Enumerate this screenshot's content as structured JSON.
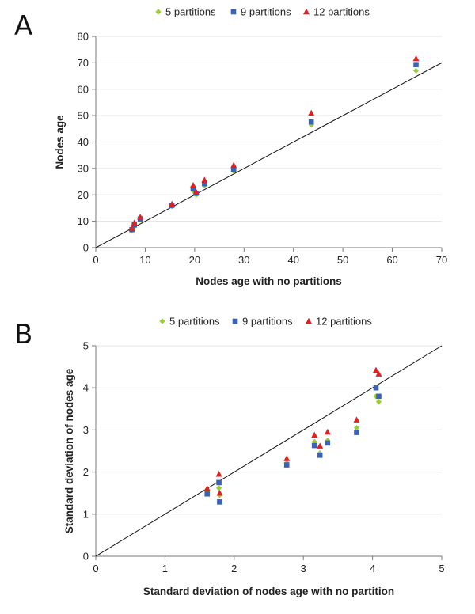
{
  "chart_data": [
    {
      "type": "scatter",
      "panel_label": "A",
      "title": "",
      "xlabel": "Nodes age with no partitions",
      "ylabel": "Nodes age",
      "xlim": [
        0,
        70
      ],
      "ylim": [
        0,
        80
      ],
      "xticks": [
        0,
        10,
        20,
        30,
        40,
        50,
        60,
        70
      ],
      "yticks": [
        0,
        10,
        20,
        30,
        40,
        50,
        60,
        70,
        80
      ],
      "xtick_labels": [
        "0",
        "10",
        "20",
        "30",
        "40",
        "50",
        "60",
        "70"
      ],
      "ytick_labels": [
        "0",
        "10",
        "20",
        "30",
        "40",
        "50",
        "60",
        "70",
        "80"
      ],
      "grid": "horizontal",
      "reference_line": "y = x",
      "legend_position": "top",
      "series": [
        {
          "name": "5 partitions",
          "color": "#9acd32",
          "marker": "diamond",
          "x": [
            7.3,
            7.8,
            9.0,
            15.4,
            19.7,
            20.3,
            22.0,
            27.9,
            43.6,
            64.8
          ],
          "y": [
            6.5,
            8.0,
            10.5,
            15.6,
            21.5,
            20.0,
            23.6,
            29.0,
            46.5,
            67.0
          ]
        },
        {
          "name": "9 partitions",
          "color": "#3a62b6",
          "marker": "square",
          "x": [
            7.3,
            7.8,
            9.0,
            15.4,
            19.7,
            20.3,
            22.0,
            27.9,
            43.6,
            64.8
          ],
          "y": [
            6.8,
            8.6,
            10.9,
            16.0,
            22.4,
            20.6,
            24.2,
            29.6,
            47.6,
            69.3
          ]
        },
        {
          "name": "12 partitions",
          "color": "#e02020",
          "marker": "triangle",
          "x": [
            7.3,
            7.8,
            9.0,
            15.4,
            19.7,
            20.3,
            22.0,
            27.9,
            43.6,
            64.8
          ],
          "y": [
            7.2,
            9.4,
            11.6,
            16.5,
            23.6,
            21.1,
            25.6,
            31.2,
            51.0,
            71.6
          ]
        }
      ]
    },
    {
      "type": "scatter",
      "panel_label": "B",
      "title": "",
      "xlabel": "Standard deviation of nodes age with no partition",
      "ylabel": "Standard deviation of nodes age",
      "xlim": [
        0,
        5
      ],
      "ylim": [
        0,
        5
      ],
      "xticks": [
        0,
        1,
        2,
        3,
        4,
        5
      ],
      "yticks": [
        0,
        1,
        2,
        3,
        4,
        5
      ],
      "xtick_labels": [
        "0",
        "1",
        "2",
        "3",
        "4",
        "5"
      ],
      "ytick_labels": [
        "0",
        "1",
        "2",
        "3",
        "4",
        "5"
      ],
      "grid": "horizontal",
      "reference_line": "y = x",
      "legend_position": "top",
      "series": [
        {
          "name": "5 partitions",
          "color": "#9acd32",
          "marker": "diamond",
          "x": [
            1.61,
            1.78,
            1.79,
            2.76,
            3.16,
            3.24,
            3.35,
            3.77,
            4.05,
            4.09
          ],
          "y": [
            1.55,
            1.62,
            1.45,
            2.22,
            2.72,
            2.45,
            2.75,
            3.05,
            3.8,
            3.67
          ]
        },
        {
          "name": "9 partitions",
          "color": "#3a62b6",
          "marker": "square",
          "x": [
            1.61,
            1.78,
            1.79,
            2.76,
            3.16,
            3.24,
            3.35,
            3.77,
            4.05,
            4.09
          ],
          "y": [
            1.48,
            1.75,
            1.29,
            2.17,
            2.63,
            2.4,
            2.69,
            2.94,
            4.0,
            3.8
          ]
        },
        {
          "name": "12 partitions",
          "color": "#e02020",
          "marker": "triangle",
          "x": [
            1.61,
            1.78,
            1.79,
            2.76,
            3.16,
            3.24,
            3.35,
            3.77,
            4.05,
            4.09
          ],
          "y": [
            1.61,
            1.95,
            1.5,
            2.32,
            2.88,
            2.62,
            2.95,
            3.24,
            4.42,
            4.33
          ]
        }
      ]
    }
  ]
}
